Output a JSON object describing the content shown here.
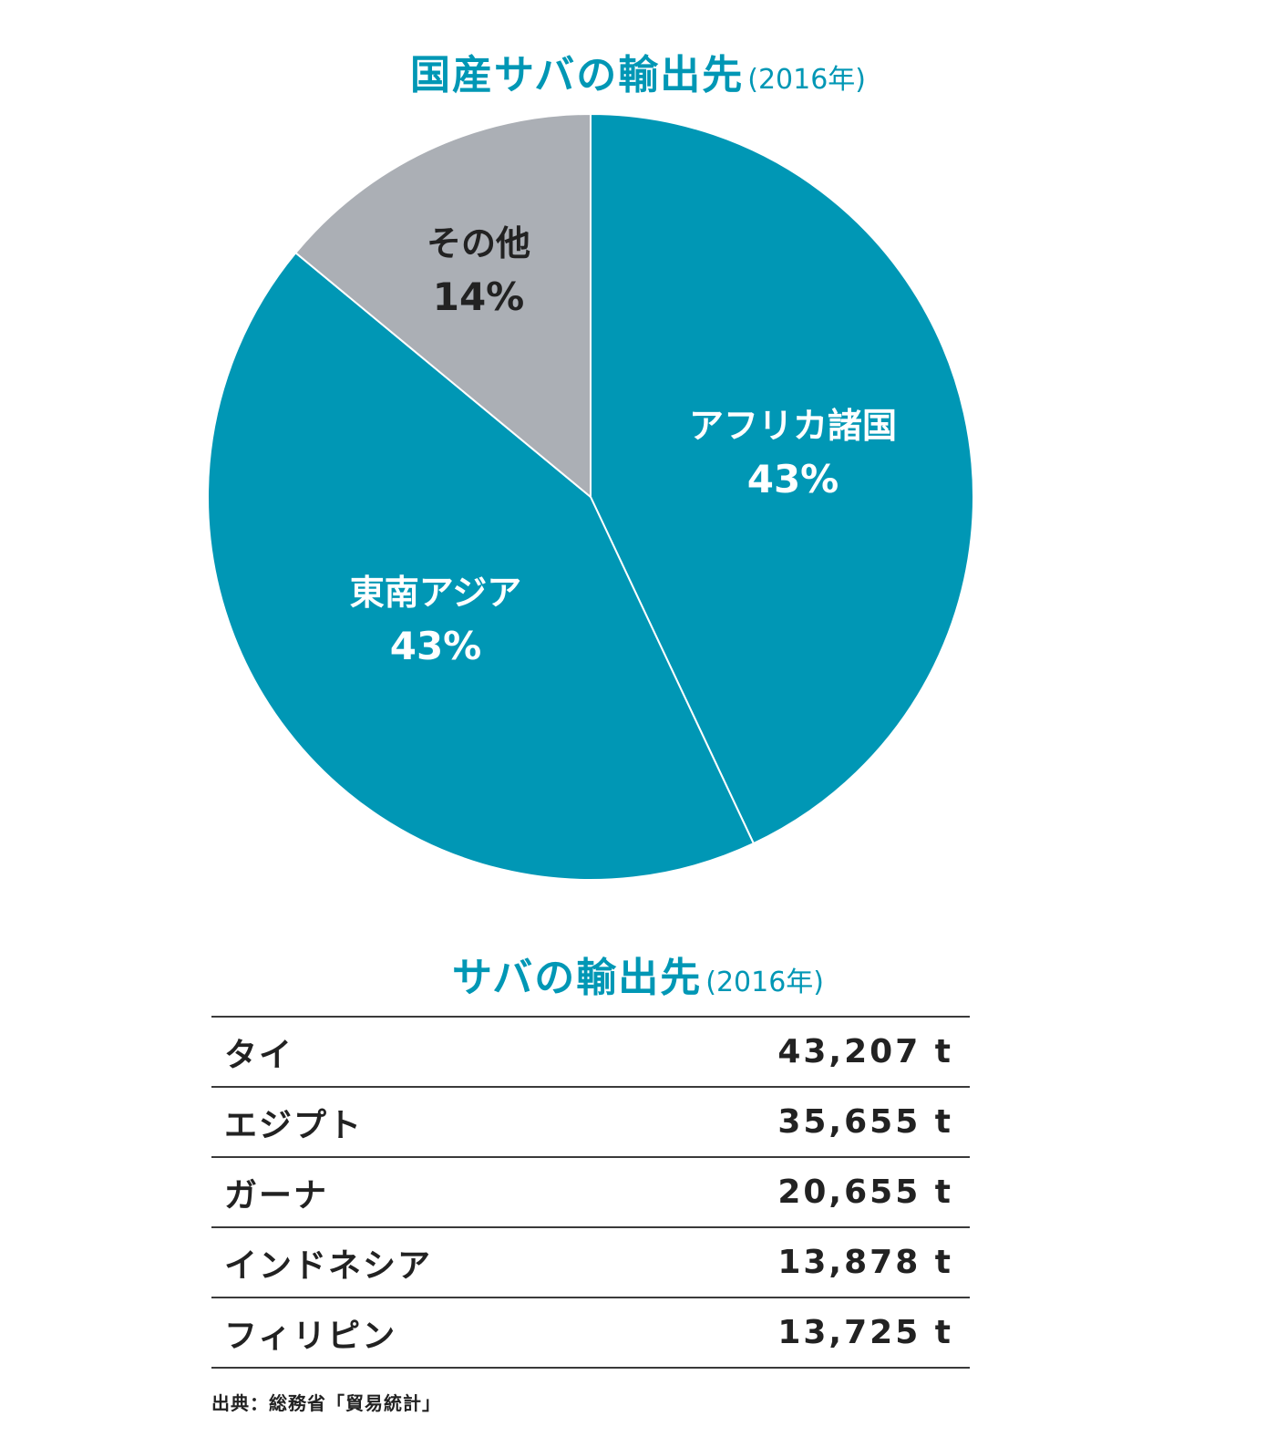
{
  "chart_title": {
    "main": "国産サバの輸出先",
    "sub": "(2016年)"
  },
  "chart_data": {
    "type": "pie",
    "title": "国産サバの輸出先(2016年)",
    "slices": [
      {
        "label": "アフリカ諸国",
        "value": 43,
        "value_label": "43%",
        "color": "#0097b5",
        "text_color": "#ffffff"
      },
      {
        "label": "東南アジア",
        "value": 43,
        "value_label": "43%",
        "color": "#0097b5",
        "text_color": "#ffffff"
      },
      {
        "label": "その他",
        "value": 14,
        "value_label": "14%",
        "color": "#abafb5",
        "text_color": "#222222"
      }
    ],
    "start": "12 o'clock",
    "direction": "clockwise"
  },
  "table": {
    "title": {
      "main": "サバの輸出先",
      "sub": "(2016年)"
    },
    "rows": [
      {
        "country": "タイ",
        "volume": "43,207 t"
      },
      {
        "country": "エジプト",
        "volume": "35,655 t"
      },
      {
        "country": "ガーナ",
        "volume": "20,655 t"
      },
      {
        "country": "インドネシア",
        "volume": "13,878 t"
      },
      {
        "country": "フィリピン",
        "volume": "13,725 t"
      }
    ]
  },
  "source": "出典：総務省「貿易統計」"
}
